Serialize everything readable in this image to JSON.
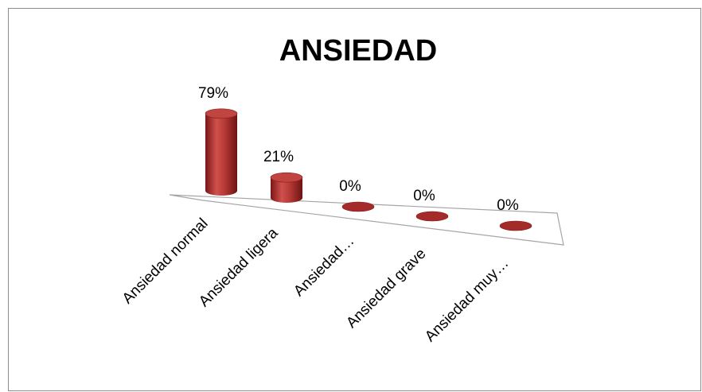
{
  "chart_data": {
    "type": "bar3d",
    "title": "ANSIEDAD",
    "categories": [
      "Ansiedad normal",
      "Ansiedad ligera",
      "Ansiedad…",
      "Ansiedad grave",
      "Ansiedad muy…"
    ],
    "values": [
      79,
      21,
      0,
      0,
      0
    ],
    "value_labels": [
      "79%",
      "21%",
      "0%",
      "0%",
      "0%"
    ],
    "color": "#a52a2a"
  }
}
